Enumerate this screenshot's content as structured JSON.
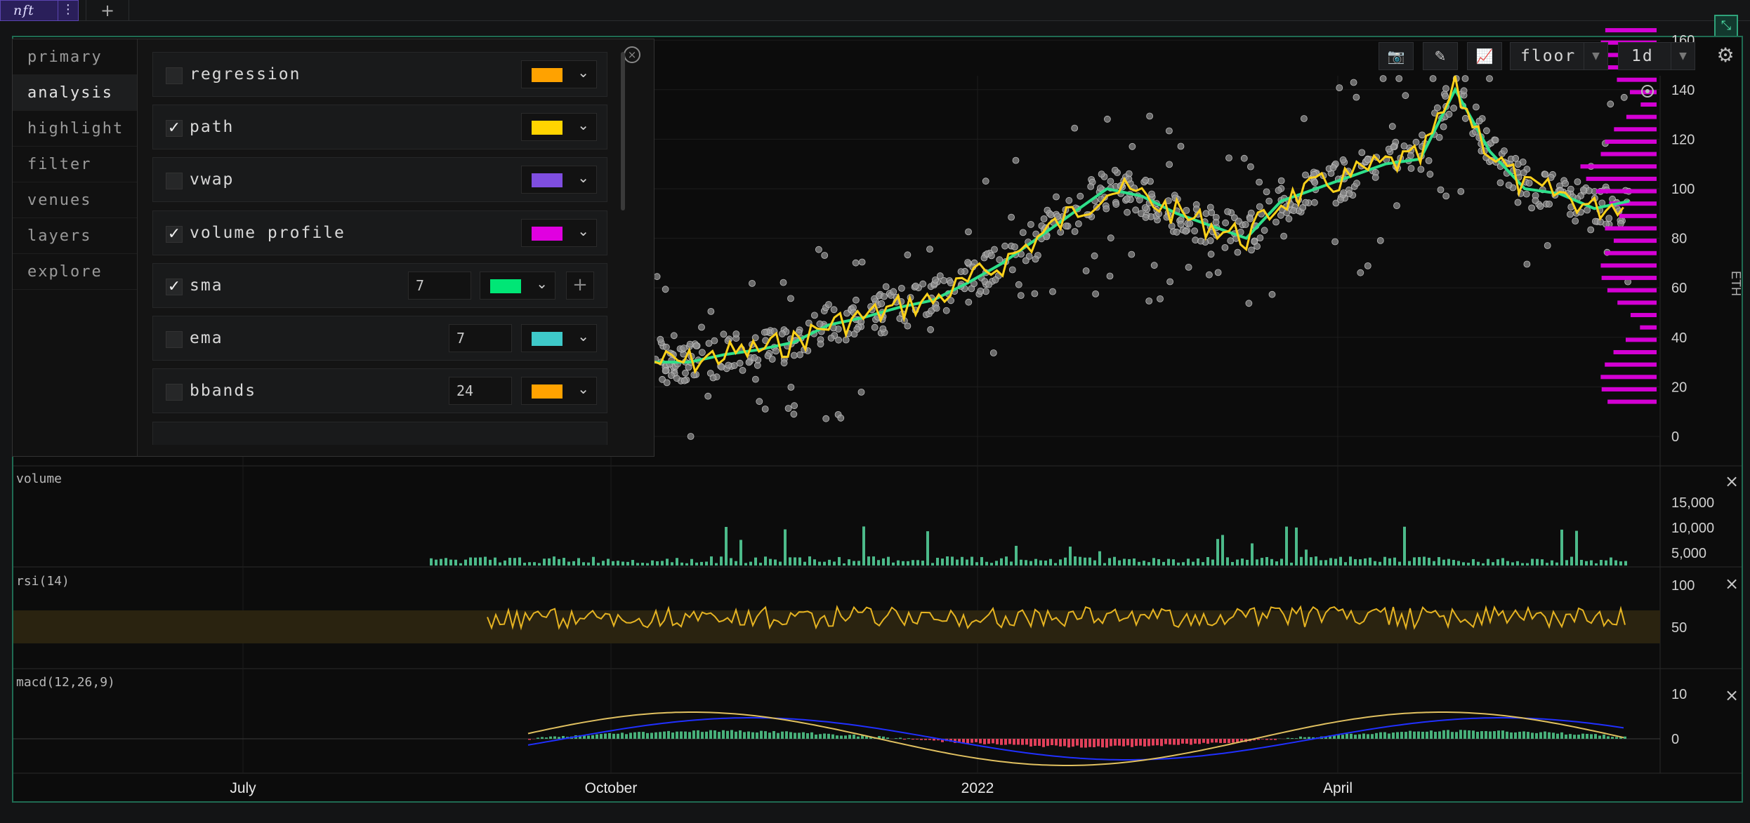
{
  "tabs": {
    "active": "nft",
    "more_icon": "⋮",
    "add_icon": "+"
  },
  "toolbar": {
    "camera_icon": "📷",
    "pencil_icon": "✎",
    "chart_icon": "📈",
    "metric": "floor",
    "interval": "1d",
    "settings_icon": "⚙"
  },
  "panel": {
    "close_icon": "×",
    "sections": [
      "primary",
      "analysis",
      "highlight",
      "filter",
      "venues",
      "layers",
      "explore"
    ],
    "active_section": "analysis",
    "rows": [
      {
        "label": "regression",
        "checked": false,
        "color": "#ffa200"
      },
      {
        "label": "path",
        "checked": true,
        "color": "#ffd400"
      },
      {
        "label": "vwap",
        "checked": false,
        "color": "#7f4ee0"
      },
      {
        "label": "volume profile",
        "checked": true,
        "color": "#e000e0"
      },
      {
        "label": "sma",
        "checked": true,
        "period": "7",
        "color": "#00e676"
      },
      {
        "label": "ema",
        "checked": false,
        "period": "7",
        "color": "#3ec9c9"
      },
      {
        "label": "bbands",
        "checked": false,
        "period": "24",
        "color": "#ffa200"
      }
    ]
  },
  "chart_data": [
    {
      "type": "scatter",
      "title": "",
      "ylabel": "ETH",
      "yticks": [
        "0",
        "20",
        "40",
        "60",
        "80",
        "100",
        "120",
        "140",
        "160"
      ],
      "ylim": [
        0,
        170
      ],
      "overlays": [
        "path",
        "sma(7)",
        "volume profile"
      ],
      "sma_series": [
        30,
        30,
        33,
        35,
        38,
        45,
        48,
        52,
        55,
        62,
        70,
        80,
        90,
        100,
        97,
        90,
        85,
        80,
        95,
        100,
        105,
        110,
        112,
        140,
        115,
        100,
        98,
        92,
        95
      ]
    },
    {
      "type": "bar",
      "title": "volume",
      "yticks": [
        "5,000",
        "10,000",
        "15,000"
      ]
    },
    {
      "type": "line",
      "title": "rsi(14)",
      "yticks": [
        "50",
        "100"
      ]
    },
    {
      "type": "line",
      "title": "macd(12,26,9)",
      "yticks": [
        "0",
        "10"
      ]
    }
  ],
  "xaxis": {
    "ticks": [
      "July",
      "October",
      "2022",
      "April"
    ]
  },
  "pane_close_icon": "×"
}
